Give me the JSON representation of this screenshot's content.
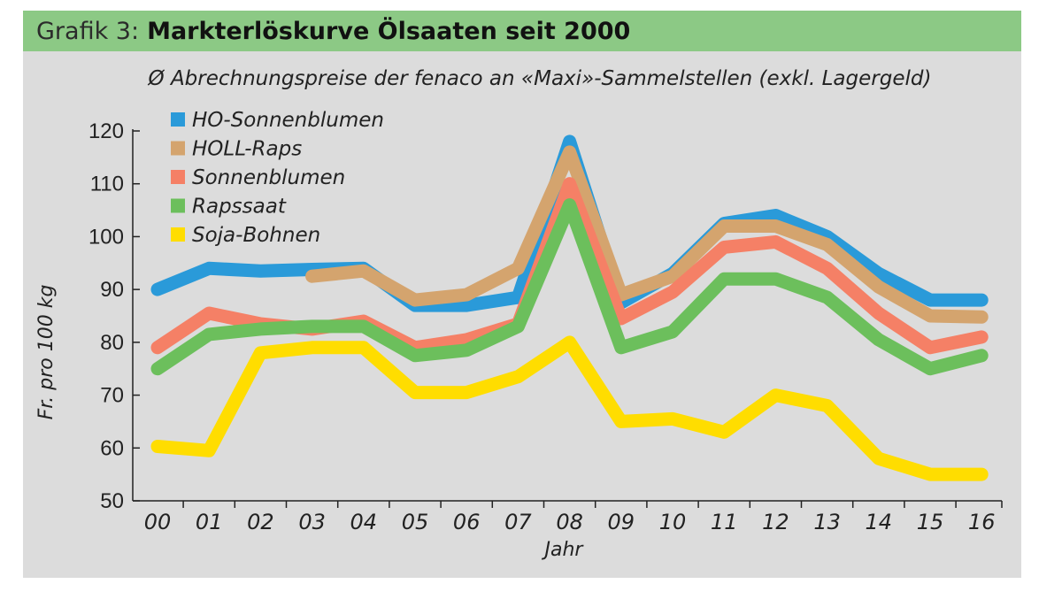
{
  "header": {
    "prefix": "Grafik 3:",
    "title": "Markterlöskurve Ölsaaten seit 2000"
  },
  "colors": {
    "header_bg": "#8cc985",
    "panel_bg": "#dcdcdc"
  },
  "chart_data": {
    "type": "line",
    "subtitle": "Ø Abrechnungspreise der fenaco an «Maxi»-Sammelstellen (exkl. Lagergeld)",
    "xlabel": "Jahr",
    "ylabel": "Fr. pro 100 kg",
    "ylim": [
      50,
      120
    ],
    "yticks": [
      50,
      60,
      70,
      80,
      90,
      100,
      110,
      120
    ],
    "categories": [
      "00",
      "01",
      "02",
      "03",
      "04",
      "05",
      "06",
      "07",
      "08",
      "09",
      "10",
      "11",
      "12",
      "13",
      "14",
      "15",
      "16"
    ],
    "grid": false,
    "legend_position": "top-left",
    "series": [
      {
        "name": "HO-Sonnenblumen",
        "color": "#2a9ad9",
        "values": [
          90,
          94,
          93.5,
          93.8,
          94,
          87,
          87,
          88.5,
          118,
          87.5,
          93,
          102.5,
          104,
          100,
          93,
          88,
          88
        ]
      },
      {
        "name": "HOLL-Raps",
        "color": "#d4a46e",
        "values": [
          null,
          null,
          null,
          92.5,
          93.5,
          88,
          89,
          94,
          116,
          89,
          92.5,
          102,
          102,
          98.5,
          90.5,
          85,
          84.8
        ]
      },
      {
        "name": "Sonnenblumen",
        "color": "#f58066",
        "values": [
          79,
          85.5,
          83.5,
          82.5,
          84,
          79,
          80.5,
          83.5,
          110,
          84.5,
          89.5,
          98,
          99,
          94,
          85.5,
          79,
          81
        ]
      },
      {
        "name": "Rapssaat",
        "color": "#6cbf5c",
        "values": [
          75,
          81.5,
          82.5,
          83,
          83,
          77.5,
          78.5,
          83,
          106,
          79,
          82,
          92,
          92,
          88.5,
          80.5,
          75,
          77.5
        ]
      },
      {
        "name": "Soja-Bohnen",
        "color": "#ffdd00",
        "values": [
          60.3,
          59.5,
          78,
          79,
          79,
          70.5,
          70.5,
          73.5,
          80,
          65,
          65.5,
          63,
          70,
          68,
          58,
          55,
          55
        ]
      }
    ]
  }
}
